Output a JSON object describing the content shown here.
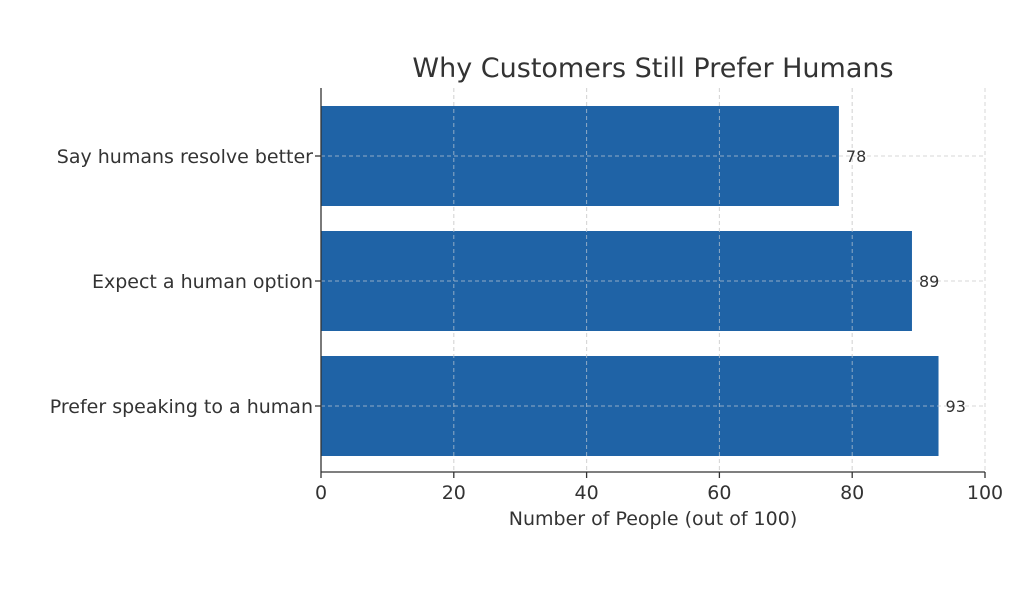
{
  "chart_data": {
    "type": "bar",
    "orientation": "horizontal",
    "title": "Why Customers Still Prefer Humans",
    "xlabel": "Number of People (out of 100)",
    "ylabel": "",
    "categories": [
      "Say humans resolve better",
      "Expect a human option",
      "Prefer speaking to a human"
    ],
    "values": [
      78,
      89,
      93
    ],
    "data_labels": [
      "78",
      "89",
      "93"
    ],
    "xlim": [
      0,
      100
    ],
    "xticks": [
      0,
      20,
      40,
      60,
      80,
      100
    ],
    "xtick_labels": [
      "0",
      "20",
      "40",
      "60",
      "80",
      "100"
    ],
    "grid": true,
    "bar_color": "#1f63a6"
  }
}
